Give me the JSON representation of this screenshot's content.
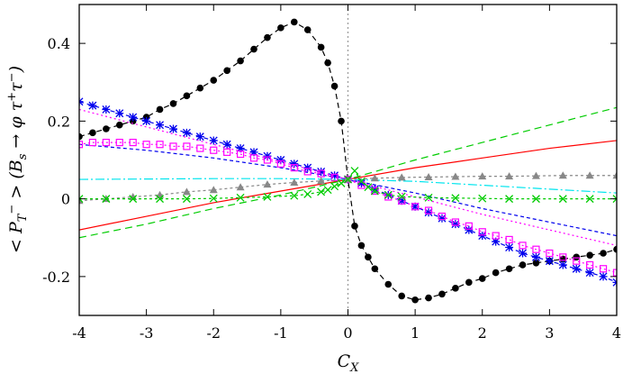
{
  "chart_data": {
    "type": "line",
    "xlabel": "C_X",
    "ylabel": "< P_T^- > (B_s → φ τ^+ τ^-)",
    "xlim": [
      -4,
      4
    ],
    "ylim": [
      -0.3,
      0.5
    ],
    "xticks": [
      -4,
      -3,
      -2,
      -1,
      0,
      1,
      2,
      3,
      4
    ],
    "yticks": [
      -0.2,
      0,
      0.2,
      0.4
    ],
    "xtick_labels": [
      "-4",
      "-3",
      "-2",
      "-1",
      "0",
      "1",
      "2",
      "3",
      "4"
    ],
    "ytick_labels": [
      "-0.2",
      "0",
      "0.2",
      "0.4"
    ],
    "reference_line_x": 0,
    "series": [
      {
        "color": "#000000",
        "dash": "6,4",
        "marker": "dot",
        "points": [
          [
            -4.0,
            0.16
          ],
          [
            -3.8,
            0.17
          ],
          [
            -3.6,
            0.18
          ],
          [
            -3.4,
            0.19
          ],
          [
            -3.2,
            0.2
          ],
          [
            -3.0,
            0.21
          ],
          [
            -2.8,
            0.23
          ],
          [
            -2.6,
            0.245
          ],
          [
            -2.4,
            0.265
          ],
          [
            -2.2,
            0.285
          ],
          [
            -2.0,
            0.305
          ],
          [
            -1.8,
            0.33
          ],
          [
            -1.6,
            0.355
          ],
          [
            -1.4,
            0.385
          ],
          [
            -1.2,
            0.415
          ],
          [
            -1.0,
            0.44
          ],
          [
            -0.8,
            0.455
          ],
          [
            -0.6,
            0.435
          ],
          [
            -0.4,
            0.39
          ],
          [
            -0.3,
            0.35
          ],
          [
            -0.2,
            0.29
          ],
          [
            -0.1,
            0.2
          ],
          [
            0.0,
            0.05
          ],
          [
            0.1,
            -0.07
          ],
          [
            0.2,
            -0.12
          ],
          [
            0.3,
            -0.15
          ],
          [
            0.4,
            -0.18
          ],
          [
            0.6,
            -0.22
          ],
          [
            0.8,
            -0.25
          ],
          [
            1.0,
            -0.26
          ],
          [
            1.2,
            -0.255
          ],
          [
            1.4,
            -0.245
          ],
          [
            1.6,
            -0.23
          ],
          [
            1.8,
            -0.215
          ],
          [
            2.0,
            -0.205
          ],
          [
            2.2,
            -0.19
          ],
          [
            2.4,
            -0.18
          ],
          [
            2.6,
            -0.17
          ],
          [
            2.8,
            -0.165
          ],
          [
            3.0,
            -0.16
          ],
          [
            3.2,
            -0.155
          ],
          [
            3.4,
            -0.15
          ],
          [
            3.6,
            -0.145
          ],
          [
            3.8,
            -0.14
          ],
          [
            4.0,
            -0.13
          ]
        ]
      },
      {
        "color": "#ff0000",
        "dash": "",
        "marker": "none",
        "points": [
          [
            -4.0,
            -0.08
          ],
          [
            -3.0,
            -0.045
          ],
          [
            -2.0,
            -0.01
          ],
          [
            -1.0,
            0.02
          ],
          [
            0.0,
            0.05
          ],
          [
            1.0,
            0.08
          ],
          [
            2.0,
            0.105
          ],
          [
            3.0,
            0.13
          ],
          [
            4.0,
            0.15
          ]
        ]
      },
      {
        "color": "#00cc00",
        "dash": "8,5",
        "marker": "none",
        "points": [
          [
            -4.0,
            -0.1
          ],
          [
            -3.0,
            -0.065
          ],
          [
            -2.0,
            -0.025
          ],
          [
            -1.0,
            0.01
          ],
          [
            0.0,
            0.05
          ],
          [
            1.0,
            0.1
          ],
          [
            2.0,
            0.145
          ],
          [
            3.0,
            0.19
          ],
          [
            4.0,
            0.235
          ]
        ]
      },
      {
        "color": "#0000ee",
        "dash": "5,4",
        "marker": "star",
        "points": [
          [
            -4.0,
            0.25
          ],
          [
            -3.8,
            0.24
          ],
          [
            -3.6,
            0.23
          ],
          [
            -3.4,
            0.22
          ],
          [
            -3.2,
            0.21
          ],
          [
            -3.0,
            0.2
          ],
          [
            -2.8,
            0.19
          ],
          [
            -2.6,
            0.18
          ],
          [
            -2.4,
            0.17
          ],
          [
            -2.2,
            0.16
          ],
          [
            -2.0,
            0.15
          ],
          [
            -1.8,
            0.14
          ],
          [
            -1.6,
            0.13
          ],
          [
            -1.4,
            0.12
          ],
          [
            -1.2,
            0.11
          ],
          [
            -1.0,
            0.1
          ],
          [
            -0.8,
            0.09
          ],
          [
            -0.6,
            0.08
          ],
          [
            -0.4,
            0.07
          ],
          [
            -0.2,
            0.06
          ],
          [
            0.0,
            0.05
          ],
          [
            0.2,
            0.04
          ],
          [
            0.4,
            0.025
          ],
          [
            0.6,
            0.01
          ],
          [
            0.8,
            -0.005
          ],
          [
            1.0,
            -0.02
          ],
          [
            1.2,
            -0.035
          ],
          [
            1.4,
            -0.05
          ],
          [
            1.6,
            -0.065
          ],
          [
            1.8,
            -0.08
          ],
          [
            2.0,
            -0.095
          ],
          [
            2.2,
            -0.11
          ],
          [
            2.4,
            -0.125
          ],
          [
            2.6,
            -0.14
          ],
          [
            2.8,
            -0.15
          ],
          [
            3.0,
            -0.16
          ],
          [
            3.2,
            -0.17
          ],
          [
            3.4,
            -0.18
          ],
          [
            3.6,
            -0.19
          ],
          [
            3.8,
            -0.2
          ],
          [
            4.0,
            -0.215
          ]
        ]
      },
      {
        "color": "#0000ee",
        "dash": "4,3",
        "marker": "none",
        "points": [
          [
            -4.0,
            0.14
          ],
          [
            -3.0,
            0.125
          ],
          [
            -2.0,
            0.105
          ],
          [
            -1.0,
            0.08
          ],
          [
            0.0,
            0.05
          ],
          [
            1.0,
            0.015
          ],
          [
            2.0,
            -0.025
          ],
          [
            3.0,
            -0.06
          ],
          [
            4.0,
            -0.095
          ]
        ]
      },
      {
        "color": "#ff00ff",
        "dash": "2,3",
        "marker": "square",
        "points": [
          [
            -4.0,
            0.14
          ],
          [
            -3.8,
            0.145
          ],
          [
            -3.6,
            0.145
          ],
          [
            -3.4,
            0.145
          ],
          [
            -3.2,
            0.145
          ],
          [
            -3.0,
            0.14
          ],
          [
            -2.8,
            0.14
          ],
          [
            -2.6,
            0.135
          ],
          [
            -2.4,
            0.135
          ],
          [
            -2.2,
            0.13
          ],
          [
            -2.0,
            0.125
          ],
          [
            -1.8,
            0.12
          ],
          [
            -1.6,
            0.115
          ],
          [
            -1.4,
            0.105
          ],
          [
            -1.2,
            0.1
          ],
          [
            -1.0,
            0.09
          ],
          [
            -0.8,
            0.08
          ],
          [
            -0.6,
            0.07
          ],
          [
            -0.4,
            0.065
          ],
          [
            -0.2,
            0.055
          ],
          [
            0.0,
            0.05
          ],
          [
            0.2,
            0.035
          ],
          [
            0.4,
            0.02
          ],
          [
            0.6,
            0.005
          ],
          [
            0.8,
            -0.005
          ],
          [
            1.0,
            -0.02
          ],
          [
            1.2,
            -0.03
          ],
          [
            1.4,
            -0.045
          ],
          [
            1.6,
            -0.06
          ],
          [
            1.8,
            -0.07
          ],
          [
            2.0,
            -0.085
          ],
          [
            2.2,
            -0.095
          ],
          [
            2.4,
            -0.105
          ],
          [
            2.6,
            -0.12
          ],
          [
            2.8,
            -0.13
          ],
          [
            3.0,
            -0.14
          ],
          [
            3.2,
            -0.15
          ],
          [
            3.4,
            -0.16
          ],
          [
            3.6,
            -0.17
          ],
          [
            3.8,
            -0.18
          ],
          [
            4.0,
            -0.19
          ]
        ]
      },
      {
        "color": "#ff00ff",
        "dash": "2,3",
        "marker": "none",
        "points": [
          [
            -4.0,
            0.23
          ],
          [
            -3.0,
            0.185
          ],
          [
            -2.0,
            0.14
          ],
          [
            -1.0,
            0.095
          ],
          [
            0.0,
            0.05
          ],
          [
            1.0,
            0.005
          ],
          [
            2.0,
            -0.04
          ],
          [
            3.0,
            -0.08
          ],
          [
            4.0,
            -0.12
          ]
        ]
      },
      {
        "color": "#00e5ee",
        "dash": "10,3,2,3",
        "marker": "none",
        "points": [
          [
            -4.0,
            0.05
          ],
          [
            -3.0,
            0.051
          ],
          [
            -2.0,
            0.052
          ],
          [
            -1.0,
            0.052
          ],
          [
            0.0,
            0.05
          ],
          [
            1.0,
            0.045
          ],
          [
            2.0,
            0.035
          ],
          [
            3.0,
            0.025
          ],
          [
            4.0,
            0.015
          ]
        ]
      },
      {
        "color": "#888888",
        "dash": "3,3",
        "marker": "triangle",
        "points": [
          [
            -4.0,
            -0.005
          ],
          [
            -3.6,
            0.0
          ],
          [
            -3.2,
            0.005
          ],
          [
            -2.8,
            0.01
          ],
          [
            -2.4,
            0.018
          ],
          [
            -2.0,
            0.023
          ],
          [
            -1.6,
            0.03
          ],
          [
            -1.2,
            0.037
          ],
          [
            -0.8,
            0.042
          ],
          [
            -0.4,
            0.046
          ],
          [
            0.0,
            0.05
          ],
          [
            0.4,
            0.053
          ],
          [
            0.8,
            0.055
          ],
          [
            1.2,
            0.056
          ],
          [
            1.6,
            0.057
          ],
          [
            2.0,
            0.058
          ],
          [
            2.4,
            0.058
          ],
          [
            2.8,
            0.059
          ],
          [
            3.2,
            0.06
          ],
          [
            3.6,
            0.06
          ],
          [
            4.0,
            0.06
          ]
        ]
      },
      {
        "color": "#00cc00",
        "dash": "3,3",
        "marker": "cross",
        "points": [
          [
            -4.0,
            0.0
          ],
          [
            -3.6,
            0.0
          ],
          [
            -3.2,
            0.0
          ],
          [
            -2.8,
            0.0
          ],
          [
            -2.4,
            0.0
          ],
          [
            -2.0,
            0.001
          ],
          [
            -1.6,
            0.003
          ],
          [
            -1.2,
            0.005
          ],
          [
            -0.8,
            0.008
          ],
          [
            -0.6,
            0.012
          ],
          [
            -0.4,
            0.018
          ],
          [
            -0.3,
            0.023
          ],
          [
            -0.2,
            0.032
          ],
          [
            -0.1,
            0.04
          ],
          [
            0.0,
            0.05
          ],
          [
            0.1,
            0.072
          ],
          [
            0.2,
            0.045
          ],
          [
            0.3,
            0.03
          ],
          [
            0.4,
            0.02
          ],
          [
            0.6,
            0.01
          ],
          [
            0.8,
            0.006
          ],
          [
            1.2,
            0.003
          ],
          [
            1.6,
            0.002
          ],
          [
            2.0,
            0.001
          ],
          [
            2.4,
            0.0
          ],
          [
            2.8,
            0.0
          ],
          [
            3.2,
            0.0
          ],
          [
            3.6,
            0.0
          ],
          [
            4.0,
            0.0
          ]
        ]
      }
    ]
  }
}
